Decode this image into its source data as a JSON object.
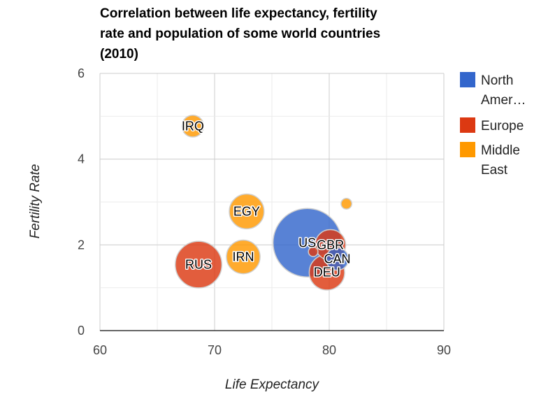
{
  "chart_data": {
    "type": "bubble",
    "title_lines": [
      "Correlation between life expectancy, fertility",
      "rate and population of some world countries",
      "(2010)"
    ],
    "xlabel": "Life Expectancy",
    "ylabel": "Fertility Rate",
    "xlim": [
      60,
      90
    ],
    "ylim": [
      0,
      6
    ],
    "x_ticks": [
      "60",
      "70",
      "80",
      "90"
    ],
    "y_ticks": [
      "0",
      "2",
      "4",
      "6"
    ],
    "grid": "on",
    "legend_position": "right",
    "series": [
      {
        "name": "North Amer…",
        "name_lines": [
          "North",
          "Amer…"
        ],
        "color": "#3366cc"
      },
      {
        "name": "Europe",
        "name_lines": [
          "Europe"
        ],
        "color": "#dc3912"
      },
      {
        "name": "Middle East",
        "name_lines": [
          "Middle",
          "East"
        ],
        "color": "#ff9900"
      }
    ],
    "points": [
      {
        "label": "USA",
        "display_label": "US",
        "x": 78.09,
        "y": 2.05,
        "series": "North Amer…",
        "size": 307
      },
      {
        "label": "RUS",
        "display_label": "RUS",
        "x": 68.6,
        "y": 1.54,
        "series": "Europe",
        "size": 142
      },
      {
        "label": "IRN",
        "display_label": "IRN",
        "x": 72.5,
        "y": 1.72,
        "series": "Middle East",
        "size": 74
      },
      {
        "label": "EGY",
        "display_label": "EGY",
        "x": 72.8,
        "y": 2.78,
        "series": "Middle East",
        "size": 79
      },
      {
        "label": "DEU",
        "display_label": "DEU",
        "x": 79.8,
        "y": 1.36,
        "series": "Europe",
        "size": 82
      },
      {
        "label": "GBR",
        "display_label": "GBR",
        "x": 80.1,
        "y": 2.0,
        "series": "Europe",
        "size": 61
      },
      {
        "label": "CAN",
        "display_label": "CAN",
        "x": 80.7,
        "y": 1.67,
        "series": "North Amer…",
        "size": 33
      },
      {
        "label": "IRQ",
        "display_label": "IRQ",
        "x": 68.1,
        "y": 4.77,
        "series": "Middle East",
        "size": 31
      },
      {
        "label": "ISR",
        "display_label": "",
        "x": 81.5,
        "y": 2.96,
        "series": "Middle East",
        "size": 7.5
      },
      {
        "label": "",
        "display_label": "",
        "x": 78.6,
        "y": 1.84,
        "series": "Europe",
        "size": 6
      }
    ]
  }
}
